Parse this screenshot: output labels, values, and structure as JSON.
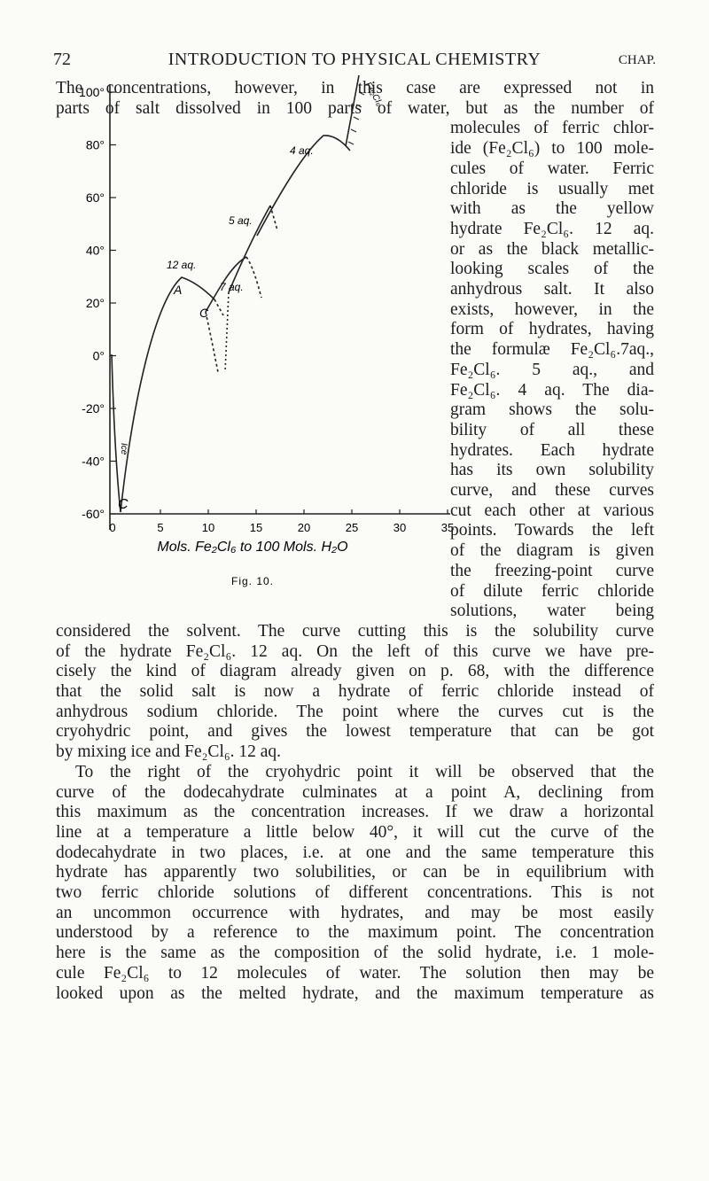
{
  "header": {
    "page": "72",
    "title": "INTRODUCTION TO PHYSICAL CHEMISTRY",
    "chap": "CHAP."
  },
  "text": {
    "top_lines": [
      "The concentrations, however, in this case are expressed not in",
      "parts of salt dissolved in 100 parts of water, but as the number of"
    ],
    "side_lines": [
      "molecules of ferric chlor-",
      "ide (Fe₂Cl₆) to 100 mole-",
      "cules of water. Ferric",
      "chloride is usually met",
      "with as the yellow",
      "hydrate Fe₂Cl₆. 12 aq.",
      "or as the black metallic-",
      "looking scales of the",
      "anhydrous salt. It also",
      "exists, however, in the",
      "form of hydrates, having",
      "the formulæ Fe₂Cl₆.7aq.,",
      "Fe₂Cl₆. 5 aq., and",
      "Fe₂Cl₆. 4 aq. The dia-",
      "gram shows the solu-",
      "bility of all these",
      "hydrates. Each hydrate",
      "has its own solubility",
      "curve, and these curves",
      "cut each other at various",
      "points. Towards the left",
      "of the diagram is given",
      "the freezing-point curve",
      "of dilute ferric chloride",
      "solutions, water being"
    ],
    "bottom_lines": [
      "considered the solvent. The curve cutting this is the solubility curve",
      "of the hydrate Fe₂Cl₆. 12 aq. On the left of this curve we have pre-",
      "cisely the kind of diagram already given on p. 68, with the difference",
      "that the solid salt is now a hydrate of ferric chloride instead of",
      "anhydrous sodium chloride. The point where the curves cut is the",
      "cryohydric point, and gives the lowest temperature that can be got",
      "by mixing ice and Fe₂Cl₆. 12 aq.",
      "To the right of the cryohydric point it will be observed that the",
      "curve of the dodecahydrate culminates at a point A, declining from",
      "this maximum as the concentration increases. If we draw a horizontal",
      "line at a temperature a little below 40°, it will cut the curve of the",
      "dodecahydrate in two places, i.e. at one and the same temperature this",
      "hydrate has apparently two solubilities, or can be in equilibrium with",
      "two ferric chloride solutions of different concentrations. This is not",
      "an uncommon occurrence with hydrates, and may be most easily",
      "understood by a reference to the maximum point. The concentration",
      "here is the same as the composition of the solid hydrate, i.e. 1 mole-",
      "cule Fe₂Cl₆ to 12 molecules of water. The solution then may be",
      "looked upon as the melted hydrate, and the maximum temperature as"
    ]
  },
  "figure": {
    "y_labels": [
      "100°",
      "80°",
      "60°",
      "40°",
      "20°",
      "0°",
      "-20°",
      "-40°",
      "-60°"
    ],
    "x_labels": [
      "0",
      "5",
      "10",
      "15",
      "20",
      "25",
      "30",
      "35"
    ],
    "x_title": "Mols. Fe₂Cl₆ to 100 Mols. H₂O",
    "caption": "Fig. 10.",
    "curve_labels": {
      "aq12": "12 aq.",
      "aq7": "7 aq.",
      "aq5": "5 aq.",
      "aq4": "4 aq.",
      "a": "A",
      "c1": "C",
      "c2": "C",
      "ice": "Ice",
      "anhydrous": "Fe₂Cl₆"
    }
  }
}
